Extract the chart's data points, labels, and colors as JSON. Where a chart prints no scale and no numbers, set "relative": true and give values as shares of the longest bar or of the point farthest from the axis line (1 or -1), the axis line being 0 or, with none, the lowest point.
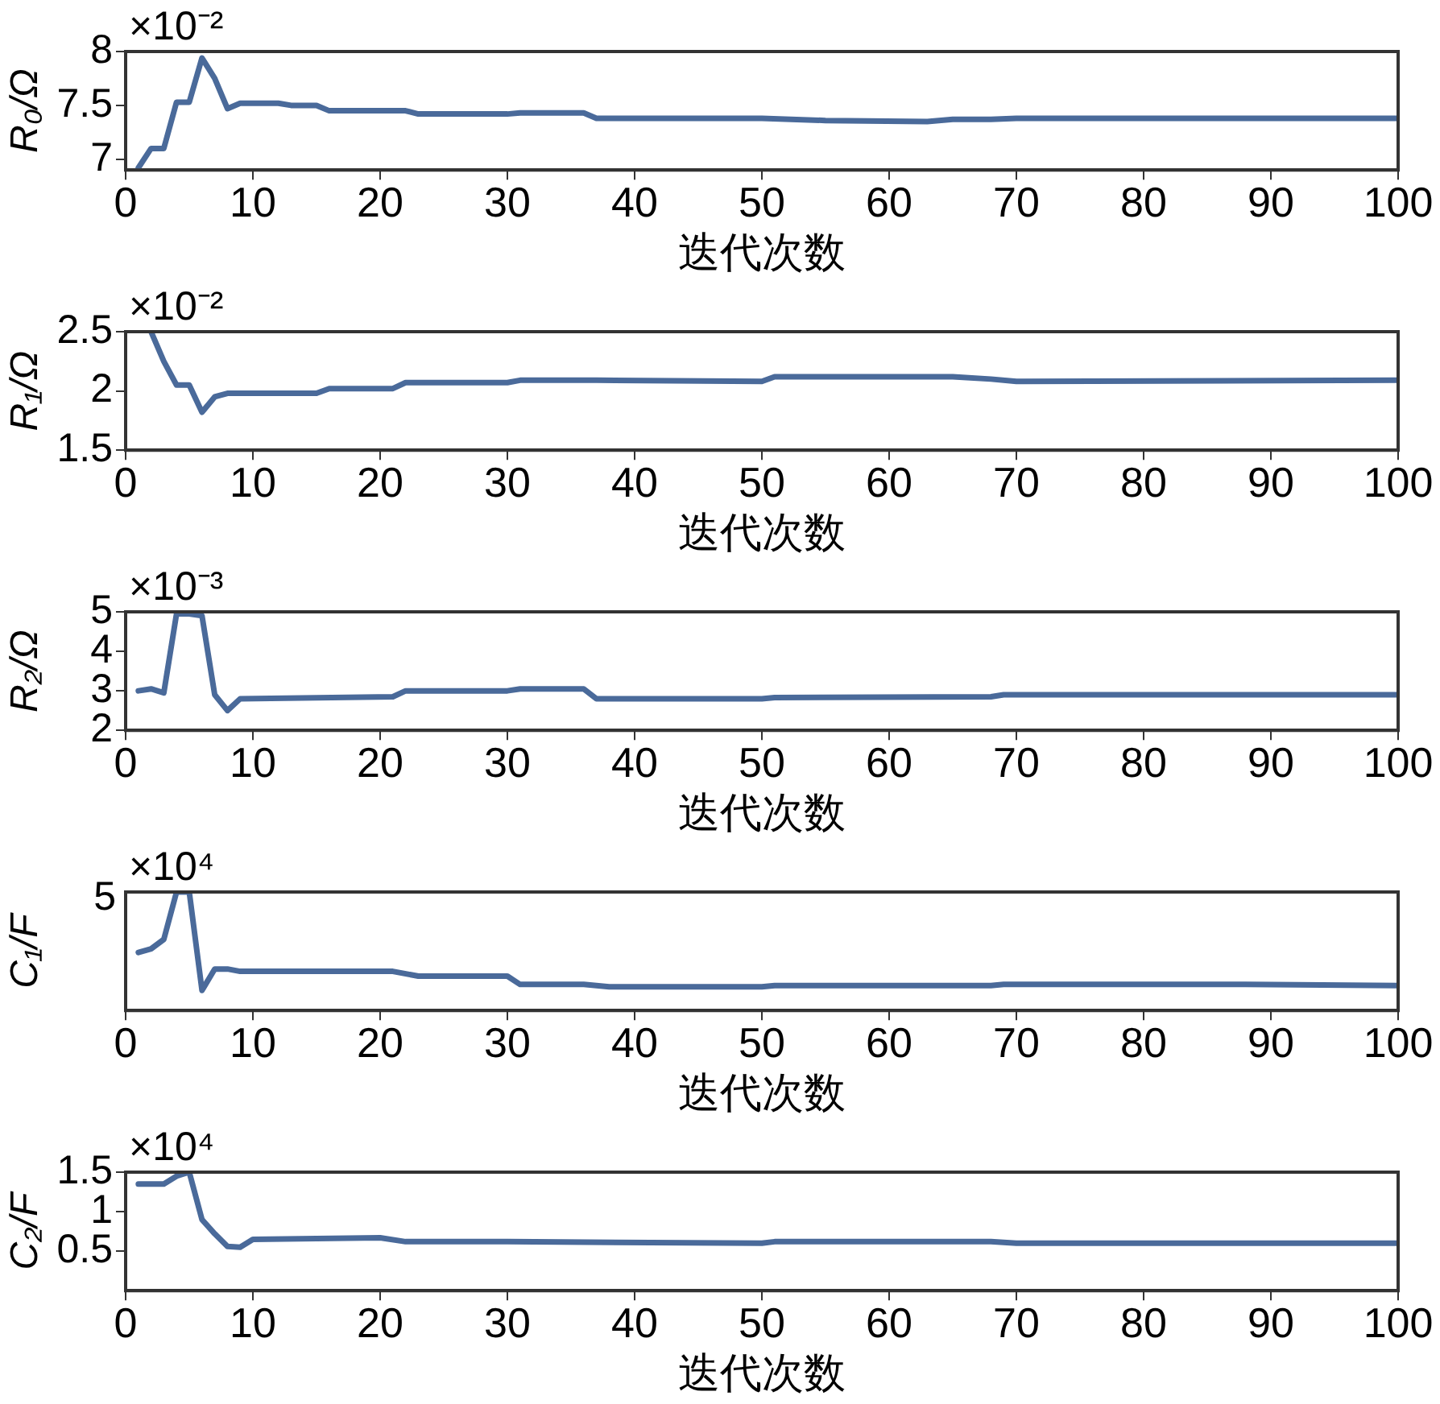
{
  "chart_data": [
    {
      "type": "line",
      "ylabel": "R₀/Ω",
      "xlabel": "迭代次数",
      "annotations": [
        "×10⁻²"
      ],
      "color": "#4a6a9a",
      "grid": false,
      "marker": "none",
      "legend": false,
      "x": [
        1,
        2,
        3,
        4,
        5,
        6,
        7,
        8,
        9,
        12,
        13,
        15,
        16,
        22,
        23,
        30,
        31,
        36,
        37,
        50,
        55,
        63,
        65,
        68,
        70,
        100
      ],
      "values": [
        6.92,
        7.1,
        7.1,
        7.53,
        7.53,
        7.94,
        7.75,
        7.47,
        7.52,
        7.52,
        7.5,
        7.5,
        7.45,
        7.45,
        7.42,
        7.42,
        7.43,
        7.43,
        7.38,
        7.38,
        7.36,
        7.35,
        7.37,
        7.37,
        7.38,
        7.38
      ],
      "xlim": [
        0,
        100
      ],
      "xticks": [
        0,
        10,
        20,
        30,
        40,
        50,
        60,
        70,
        80,
        90,
        100
      ],
      "ylim": [
        6.9,
        8
      ],
      "yticks": [
        7,
        7.5,
        8
      ]
    },
    {
      "type": "line",
      "ylabel": "R₁/Ω",
      "xlabel": "迭代次数",
      "annotations": [
        "×10⁻²"
      ],
      "color": "#4a6a9a",
      "grid": false,
      "marker": "none",
      "legend": false,
      "x": [
        2,
        3,
        4,
        5,
        6,
        7,
        8,
        15,
        16,
        21,
        22,
        30,
        31,
        37,
        50,
        51,
        65,
        68,
        70,
        100
      ],
      "values": [
        2.5,
        2.25,
        2.05,
        2.05,
        1.82,
        1.95,
        1.98,
        1.98,
        2.02,
        2.02,
        2.07,
        2.07,
        2.09,
        2.09,
        2.08,
        2.12,
        2.12,
        2.1,
        2.08,
        2.09
      ],
      "xlim": [
        0,
        100
      ],
      "xticks": [
        0,
        10,
        20,
        30,
        40,
        50,
        60,
        70,
        80,
        90,
        100
      ],
      "ylim": [
        1.5,
        2.5
      ],
      "yticks": [
        1.5,
        2,
        2.5
      ]
    },
    {
      "type": "line",
      "ylabel": "R₂/Ω",
      "xlabel": "迭代次数",
      "annotations": [
        "×10⁻³"
      ],
      "color": "#4a6a9a",
      "grid": false,
      "marker": "none",
      "legend": false,
      "x": [
        1,
        2,
        3,
        4,
        5,
        6,
        7,
        8,
        9,
        21,
        22,
        30,
        31,
        36,
        37,
        50,
        51,
        68,
        69,
        100
      ],
      "values": [
        3.0,
        3.05,
        2.95,
        4.95,
        4.95,
        4.9,
        2.9,
        2.5,
        2.8,
        2.85,
        3.0,
        3.0,
        3.05,
        3.05,
        2.8,
        2.8,
        2.83,
        2.85,
        2.9,
        2.9
      ],
      "xlim": [
        0,
        100
      ],
      "xticks": [
        0,
        10,
        20,
        30,
        40,
        50,
        60,
        70,
        80,
        90,
        100
      ],
      "ylim": [
        2,
        5
      ],
      "yticks": [
        2,
        3,
        4,
        5
      ]
    },
    {
      "type": "line",
      "ylabel": "C₁/F",
      "xlabel": "迭代次数",
      "annotations": [
        "×10⁴",
        "5"
      ],
      "color": "#4a6a9a",
      "grid": false,
      "marker": "none",
      "legend": false,
      "relative": true,
      "x": [
        1,
        2,
        3,
        4,
        5,
        6,
        7,
        8,
        9,
        21,
        23,
        30,
        31,
        36,
        38,
        50,
        51,
        68,
        69,
        88,
        100
      ],
      "values": [
        0.49,
        0.52,
        0.6,
        1,
        1,
        0.17,
        0.35,
        0.35,
        0.33,
        0.33,
        0.29,
        0.29,
        0.22,
        0.22,
        0.2,
        0.2,
        0.21,
        0.21,
        0.22,
        0.22,
        0.21
      ],
      "xlim": [
        0,
        100
      ],
      "xticks": [
        0,
        10,
        20,
        30,
        40,
        50,
        60,
        70,
        80,
        90,
        100
      ]
    },
    {
      "type": "line",
      "ylabel": "C₂/F",
      "xlabel": "迭代次数",
      "annotations": [
        "×10⁴"
      ],
      "color": "#4a6a9a",
      "grid": false,
      "marker": "none",
      "legend": false,
      "x": [
        1,
        3,
        4,
        5,
        6,
        7,
        8,
        9,
        10,
        20,
        22,
        30,
        50,
        51,
        68,
        70,
        100
      ],
      "values": [
        1.35,
        1.35,
        1.45,
        1.5,
        0.9,
        0.72,
        0.56,
        0.55,
        0.65,
        0.67,
        0.62,
        0.62,
        0.6,
        0.62,
        0.62,
        0.6,
        0.6
      ],
      "xlim": [
        0,
        100
      ],
      "xticks": [
        0,
        10,
        20,
        30,
        40,
        50,
        60,
        70,
        80,
        90,
        100
      ],
      "ylim": [
        0,
        1.5
      ],
      "yticks": [
        0.5,
        1,
        1.5
      ]
    }
  ]
}
